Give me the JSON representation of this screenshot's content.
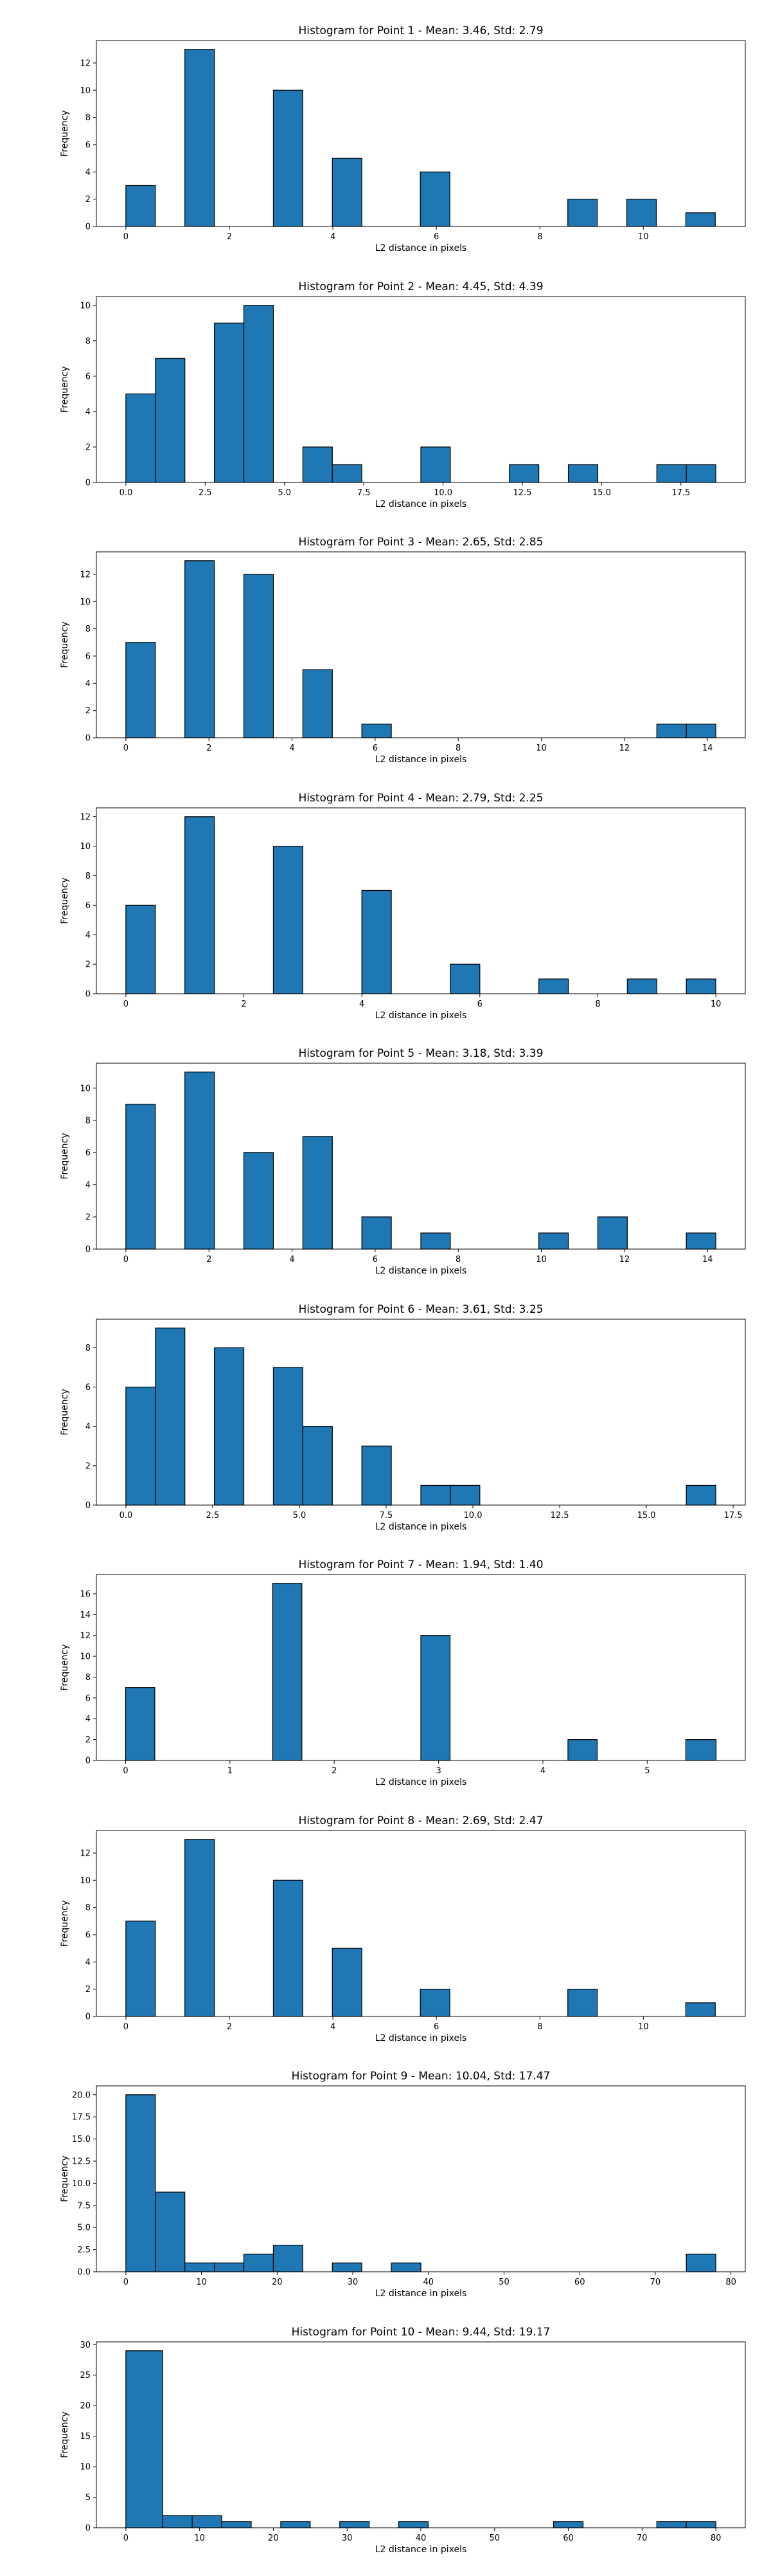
{
  "colors": {
    "bar_fill": "#1f77b4",
    "bar_edge": "#000000",
    "axes": "#000000",
    "background": "#ffffff"
  },
  "chart_data": [
    {
      "type": "bar",
      "title": "Histogram for Point 1 - Mean: 3.46, Std: 2.79",
      "xlabel": "L2 distance in pixels",
      "ylabel": "Frequency",
      "grid": false,
      "xlim": [
        -0.57,
        11.97
      ],
      "ylim": [
        0,
        13.65
      ],
      "xticks": [
        0,
        2,
        4,
        6,
        8,
        10
      ],
      "xtick_labels": [
        "0",
        "2",
        "4",
        "6",
        "8",
        "10"
      ],
      "yticks": [
        0,
        2,
        4,
        6,
        8,
        10,
        12
      ],
      "ytick_labels": [
        "0",
        "2",
        "4",
        "6",
        "8",
        "10",
        "12"
      ],
      "bars": [
        {
          "x0": 0.0,
          "x1": 0.57,
          "value": 3
        },
        {
          "x0": 1.14,
          "x1": 1.71,
          "value": 13
        },
        {
          "x0": 2.85,
          "x1": 3.42,
          "value": 10
        },
        {
          "x0": 3.99,
          "x1": 4.56,
          "value": 5
        },
        {
          "x0": 5.69,
          "x1": 6.26,
          "value": 4
        },
        {
          "x0": 8.54,
          "x1": 9.11,
          "value": 2
        },
        {
          "x0": 9.68,
          "x1": 10.25,
          "value": 2
        },
        {
          "x0": 10.82,
          "x1": 11.39,
          "value": 1
        }
      ]
    },
    {
      "type": "bar",
      "title": "Histogram for Point 2 - Mean: 4.45, Std: 4.39",
      "xlabel": "L2 distance in pixels",
      "ylabel": "Frequency",
      "grid": false,
      "xlim": [
        -0.93,
        19.53
      ],
      "ylim": [
        0,
        10.5
      ],
      "xticks": [
        0,
        2.5,
        5,
        7.5,
        10,
        12.5,
        15,
        17.5
      ],
      "xtick_labels": [
        "0.0",
        "2.5",
        "5.0",
        "7.5",
        "10.0",
        "12.5",
        "15.0",
        "17.5"
      ],
      "yticks": [
        0,
        2,
        4,
        6,
        8,
        10
      ],
      "ytick_labels": [
        "0",
        "2",
        "4",
        "6",
        "8",
        "10"
      ],
      "bars": [
        {
          "x0": 0.0,
          "x1": 0.93,
          "value": 5
        },
        {
          "x0": 0.93,
          "x1": 1.86,
          "value": 7
        },
        {
          "x0": 2.79,
          "x1": 3.72,
          "value": 9
        },
        {
          "x0": 3.72,
          "x1": 4.65,
          "value": 10
        },
        {
          "x0": 5.58,
          "x1": 6.51,
          "value": 2
        },
        {
          "x0": 6.51,
          "x1": 7.44,
          "value": 1
        },
        {
          "x0": 9.3,
          "x1": 10.23,
          "value": 2
        },
        {
          "x0": 12.09,
          "x1": 13.02,
          "value": 1
        },
        {
          "x0": 13.95,
          "x1": 14.88,
          "value": 1
        },
        {
          "x0": 16.74,
          "x1": 17.67,
          "value": 1
        },
        {
          "x0": 17.67,
          "x1": 18.6,
          "value": 1
        }
      ]
    },
    {
      "type": "bar",
      "title": "Histogram for Point 3 - Mean: 2.65, Std: 2.85",
      "xlabel": "L2 distance in pixels",
      "ylabel": "Frequency",
      "grid": false,
      "xlim": [
        -0.71,
        14.91
      ],
      "ylim": [
        0,
        13.65
      ],
      "xticks": [
        0,
        2,
        4,
        6,
        8,
        10,
        12,
        14
      ],
      "xtick_labels": [
        "0",
        "2",
        "4",
        "6",
        "8",
        "10",
        "12",
        "14"
      ],
      "yticks": [
        0,
        2,
        4,
        6,
        8,
        10,
        12
      ],
      "ytick_labels": [
        "0",
        "2",
        "4",
        "6",
        "8",
        "10",
        "12"
      ],
      "bars": [
        {
          "x0": 0.0,
          "x1": 0.71,
          "value": 7
        },
        {
          "x0": 1.42,
          "x1": 2.13,
          "value": 13
        },
        {
          "x0": 2.84,
          "x1": 3.55,
          "value": 12
        },
        {
          "x0": 4.26,
          "x1": 4.97,
          "value": 5
        },
        {
          "x0": 5.68,
          "x1": 6.39,
          "value": 1
        },
        {
          "x0": 12.78,
          "x1": 13.49,
          "value": 1
        },
        {
          "x0": 13.49,
          "x1": 14.2,
          "value": 1
        }
      ]
    },
    {
      "type": "bar",
      "title": "Histogram for Point 4 - Mean: 2.79, Std: 2.25",
      "xlabel": "L2 distance in pixels",
      "ylabel": "Frequency",
      "grid": false,
      "xlim": [
        -0.5,
        10.5
      ],
      "ylim": [
        0,
        12.6
      ],
      "xticks": [
        0,
        2,
        4,
        6,
        8,
        10
      ],
      "xtick_labels": [
        "0",
        "2",
        "4",
        "6",
        "8",
        "10"
      ],
      "yticks": [
        0,
        2,
        4,
        6,
        8,
        10,
        12
      ],
      "ytick_labels": [
        "0",
        "2",
        "4",
        "6",
        "8",
        "10",
        "12"
      ],
      "bars": [
        {
          "x0": 0.0,
          "x1": 0.5,
          "value": 6
        },
        {
          "x0": 1.0,
          "x1": 1.5,
          "value": 12
        },
        {
          "x0": 2.5,
          "x1": 3.0,
          "value": 10
        },
        {
          "x0": 4.0,
          "x1": 4.5,
          "value": 7
        },
        {
          "x0": 5.5,
          "x1": 6.0,
          "value": 2
        },
        {
          "x0": 7.0,
          "x1": 7.5,
          "value": 1
        },
        {
          "x0": 8.5,
          "x1": 9.0,
          "value": 1
        },
        {
          "x0": 9.5,
          "x1": 10.0,
          "value": 1
        }
      ]
    },
    {
      "type": "bar",
      "title": "Histogram for Point 5 - Mean: 3.18, Std: 3.39",
      "xlabel": "L2 distance in pixels",
      "ylabel": "Frequency",
      "grid": false,
      "xlim": [
        -0.71,
        14.91
      ],
      "ylim": [
        0,
        11.55
      ],
      "xticks": [
        0,
        2,
        4,
        6,
        8,
        10,
        12,
        14
      ],
      "xtick_labels": [
        "0",
        "2",
        "4",
        "6",
        "8",
        "10",
        "12",
        "14"
      ],
      "yticks": [
        0,
        2,
        4,
        6,
        8,
        10
      ],
      "ytick_labels": [
        "0",
        "2",
        "4",
        "6",
        "8",
        "10"
      ],
      "bars": [
        {
          "x0": 0.0,
          "x1": 0.71,
          "value": 9
        },
        {
          "x0": 1.42,
          "x1": 2.13,
          "value": 11
        },
        {
          "x0": 2.84,
          "x1": 3.55,
          "value": 6
        },
        {
          "x0": 4.26,
          "x1": 4.97,
          "value": 7
        },
        {
          "x0": 5.68,
          "x1": 6.39,
          "value": 2
        },
        {
          "x0": 7.1,
          "x1": 7.81,
          "value": 1
        },
        {
          "x0": 9.94,
          "x1": 10.65,
          "value": 1
        },
        {
          "x0": 11.36,
          "x1": 12.07,
          "value": 2
        },
        {
          "x0": 13.49,
          "x1": 14.2,
          "value": 1
        }
      ]
    },
    {
      "type": "bar",
      "title": "Histogram for Point 6 - Mean: 3.61, Std: 3.25",
      "xlabel": "L2 distance in pixels",
      "ylabel": "Frequency",
      "grid": false,
      "xlim": [
        -0.85,
        17.85
      ],
      "ylim": [
        0,
        9.45
      ],
      "xticks": [
        0,
        2.5,
        5,
        7.5,
        10,
        12.5,
        15,
        17.5
      ],
      "xtick_labels": [
        "0.0",
        "2.5",
        "5.0",
        "7.5",
        "10.0",
        "12.5",
        "15.0",
        "17.5"
      ],
      "yticks": [
        0,
        2,
        4,
        6,
        8
      ],
      "ytick_labels": [
        "0",
        "2",
        "4",
        "6",
        "8"
      ],
      "bars": [
        {
          "x0": 0.0,
          "x1": 0.85,
          "value": 6
        },
        {
          "x0": 0.85,
          "x1": 1.7,
          "value": 9
        },
        {
          "x0": 2.55,
          "x1": 3.4,
          "value": 8
        },
        {
          "x0": 4.25,
          "x1": 5.1,
          "value": 7
        },
        {
          "x0": 5.1,
          "x1": 5.95,
          "value": 4
        },
        {
          "x0": 6.8,
          "x1": 7.65,
          "value": 3
        },
        {
          "x0": 8.5,
          "x1": 9.35,
          "value": 1
        },
        {
          "x0": 9.35,
          "x1": 10.2,
          "value": 1
        },
        {
          "x0": 16.15,
          "x1": 17.0,
          "value": 1
        }
      ]
    },
    {
      "type": "bar",
      "title": "Histogram for Point 7 - Mean: 1.94, Std: 1.40",
      "xlabel": "L2 distance in pixels",
      "ylabel": "Frequency",
      "grid": false,
      "xlim": [
        -0.28,
        5.94
      ],
      "ylim": [
        0,
        17.85
      ],
      "xticks": [
        0,
        1,
        2,
        3,
        4,
        5
      ],
      "xtick_labels": [
        "0",
        "1",
        "2",
        "3",
        "4",
        "5"
      ],
      "yticks": [
        0,
        2,
        4,
        6,
        8,
        10,
        12,
        14,
        16
      ],
      "ytick_labels": [
        "0",
        "2",
        "4",
        "6",
        "8",
        "10",
        "12",
        "14",
        "16"
      ],
      "bars": [
        {
          "x0": 0.0,
          "x1": 0.28,
          "value": 7
        },
        {
          "x0": 1.41,
          "x1": 1.69,
          "value": 17
        },
        {
          "x0": 2.83,
          "x1": 3.11,
          "value": 12
        },
        {
          "x0": 4.24,
          "x1": 4.52,
          "value": 2
        },
        {
          "x0": 5.37,
          "x1": 5.66,
          "value": 2
        }
      ]
    },
    {
      "type": "bar",
      "title": "Histogram for Point 8 - Mean: 2.69, Std: 2.47",
      "xlabel": "L2 distance in pixels",
      "ylabel": "Frequency",
      "grid": false,
      "xlim": [
        -0.57,
        11.97
      ],
      "ylim": [
        0,
        13.65
      ],
      "xticks": [
        0,
        2,
        4,
        6,
        8,
        10
      ],
      "xtick_labels": [
        "0",
        "2",
        "4",
        "6",
        "8",
        "10"
      ],
      "yticks": [
        0,
        2,
        4,
        6,
        8,
        10,
        12
      ],
      "ytick_labels": [
        "0",
        "2",
        "4",
        "6",
        "8",
        "10",
        "12"
      ],
      "bars": [
        {
          "x0": 0.0,
          "x1": 0.57,
          "value": 7
        },
        {
          "x0": 1.14,
          "x1": 1.71,
          "value": 13
        },
        {
          "x0": 2.85,
          "x1": 3.42,
          "value": 10
        },
        {
          "x0": 3.99,
          "x1": 4.56,
          "value": 5
        },
        {
          "x0": 5.69,
          "x1": 6.26,
          "value": 2
        },
        {
          "x0": 8.54,
          "x1": 9.11,
          "value": 2
        },
        {
          "x0": 10.82,
          "x1": 11.39,
          "value": 1
        }
      ]
    },
    {
      "type": "bar",
      "title": "Histogram for Point 9 - Mean: 10.04, Std: 17.47",
      "xlabel": "L2 distance in pixels",
      "ylabel": "Frequency",
      "grid": false,
      "xlim": [
        -3.9,
        81.9
      ],
      "ylim": [
        0,
        21.0
      ],
      "xticks": [
        0,
        10,
        20,
        30,
        40,
        50,
        60,
        70,
        80
      ],
      "xtick_labels": [
        "0",
        "10",
        "20",
        "30",
        "40",
        "50",
        "60",
        "70",
        "80"
      ],
      "yticks": [
        0,
        2.5,
        5,
        7.5,
        10,
        12.5,
        15,
        17.5,
        20
      ],
      "ytick_labels": [
        "0.0",
        "2.5",
        "5.0",
        "7.5",
        "10.0",
        "12.5",
        "15.0",
        "17.5",
        "20.0"
      ],
      "bars": [
        {
          "x0": 0.0,
          "x1": 3.9,
          "value": 20
        },
        {
          "x0": 3.9,
          "x1": 7.8,
          "value": 9
        },
        {
          "x0": 7.8,
          "x1": 11.7,
          "value": 1
        },
        {
          "x0": 11.7,
          "x1": 15.6,
          "value": 1
        },
        {
          "x0": 15.6,
          "x1": 19.5,
          "value": 2
        },
        {
          "x0": 19.5,
          "x1": 23.4,
          "value": 3
        },
        {
          "x0": 27.3,
          "x1": 31.2,
          "value": 1
        },
        {
          "x0": 35.1,
          "x1": 39.0,
          "value": 1
        },
        {
          "x0": 74.1,
          "x1": 78.0,
          "value": 2
        }
      ]
    },
    {
      "type": "bar",
      "title": "Histogram for Point 10 - Mean: 9.44, Std: 19.17",
      "xlabel": "L2 distance in pixels",
      "ylabel": "Frequency",
      "grid": false,
      "xlim": [
        -4.0,
        84.0
      ],
      "ylim": [
        0,
        30.45
      ],
      "xticks": [
        0,
        10,
        20,
        30,
        40,
        50,
        60,
        70,
        80
      ],
      "xtick_labels": [
        "0",
        "10",
        "20",
        "30",
        "40",
        "50",
        "60",
        "70",
        "80"
      ],
      "yticks": [
        0,
        5,
        10,
        15,
        20,
        25,
        30
      ],
      "ytick_labels": [
        "0",
        "5",
        "10",
        "15",
        "20",
        "25",
        "30"
      ],
      "bars": [
        {
          "x0": 0.0,
          "x1": 5.0,
          "value": 29
        },
        {
          "x0": 5.0,
          "x1": 9.0,
          "value": 2
        },
        {
          "x0": 9.0,
          "x1": 13.0,
          "value": 2
        },
        {
          "x0": 13.0,
          "x1": 17.0,
          "value": 1
        },
        {
          "x0": 21.0,
          "x1": 25.0,
          "value": 1
        },
        {
          "x0": 29.0,
          "x1": 33.0,
          "value": 1
        },
        {
          "x0": 37.0,
          "x1": 41.0,
          "value": 1
        },
        {
          "x0": 58.0,
          "x1": 62.0,
          "value": 1
        },
        {
          "x0": 72.0,
          "x1": 76.0,
          "value": 1
        },
        {
          "x0": 76.0,
          "x1": 80.0,
          "value": 1
        }
      ]
    }
  ]
}
